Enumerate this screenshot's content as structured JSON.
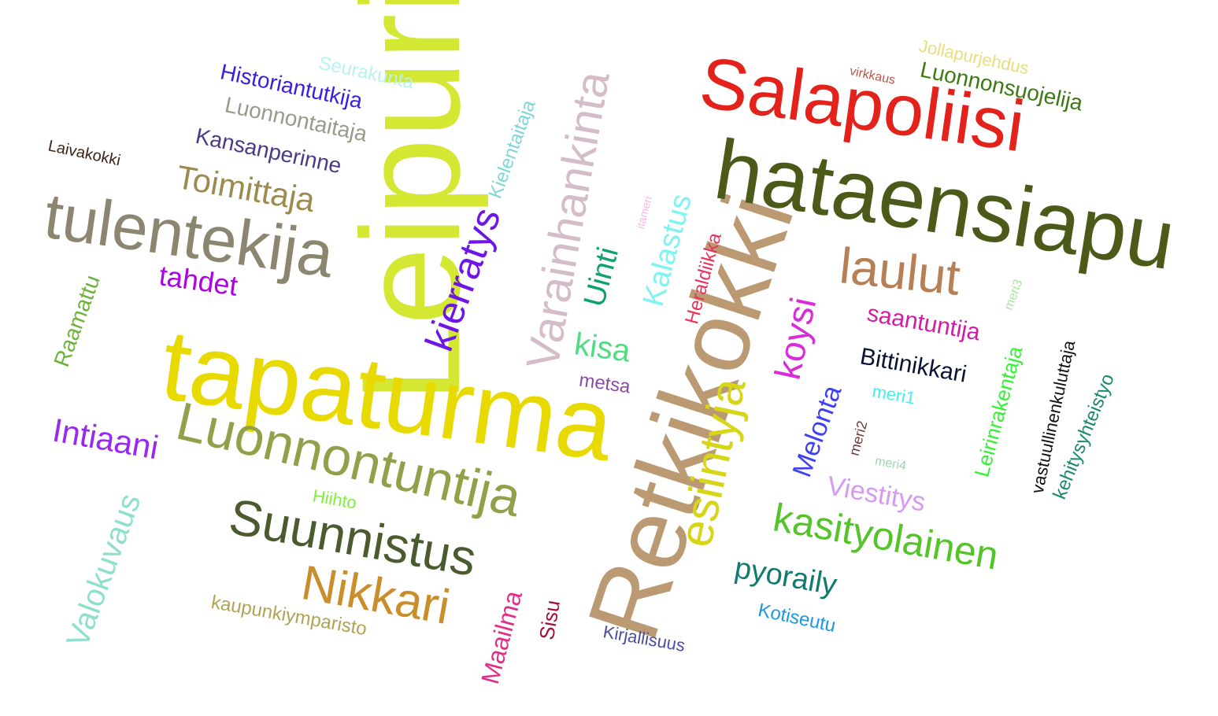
{
  "words": [
    {
      "text": "Leipuri",
      "color": "#d4e833"
    },
    {
      "text": "tapaturma",
      "color": "#e8d900"
    },
    {
      "text": "Retkikokki",
      "color": "#bb9a73"
    },
    {
      "text": "hataensiapu",
      "color": "#4b5a18"
    },
    {
      "text": "Salapoliisi",
      "color": "#e3231b"
    },
    {
      "text": "tulentekija",
      "color": "#8c8670"
    },
    {
      "text": "Luonnontuntija",
      "color": "#93a04a"
    },
    {
      "text": "Suunnistus",
      "color": "#4b5a2f"
    },
    {
      "text": "Varainhankinta",
      "color": "#d4bcc9"
    },
    {
      "text": "laulut",
      "color": "#b77f54"
    },
    {
      "text": "esiintyja",
      "color": "#d6d617"
    },
    {
      "text": "Nikkari",
      "color": "#c98d2a"
    },
    {
      "text": "kasityolainen",
      "color": "#55c42a"
    },
    {
      "text": "kierratys",
      "color": "#6e16e6"
    },
    {
      "text": "Toimittaja",
      "color": "#9b8b4e"
    },
    {
      "text": "Intiaani",
      "color": "#9b28f0"
    },
    {
      "text": "Valokuvaus",
      "color": "#8edfcc"
    },
    {
      "text": "koysi",
      "color": "#d92bd9"
    },
    {
      "text": "kisa",
      "color": "#4fdd84"
    },
    {
      "text": "pyoraily",
      "color": "#137a6e"
    },
    {
      "text": "Uinti",
      "color": "#0fa26a"
    },
    {
      "text": "Kalastus",
      "color": "#7ff2f2"
    },
    {
      "text": "Melonta",
      "color": "#3f3ff5"
    },
    {
      "text": "Viestitys",
      "color": "#d79af2"
    },
    {
      "text": "saantuntija",
      "color": "#d51aa4"
    },
    {
      "text": "Bittinikkari",
      "color": "#0b1335"
    },
    {
      "text": "Maailma",
      "color": "#df2f8a"
    },
    {
      "text": "Kansanperinne",
      "color": "#4d3a86"
    },
    {
      "text": "Historiantutkija",
      "color": "#3a1fe0"
    },
    {
      "text": "Luonnontaitaja",
      "color": "#959c8a"
    },
    {
      "text": "Luonnonsuojelija",
      "color": "#3b7a13"
    },
    {
      "text": "tahdet",
      "color": "#b000e6"
    },
    {
      "text": "Raamattu",
      "color": "#6fb23a"
    },
    {
      "text": "kaupunkiymparisto",
      "color": "#b0a454"
    },
    {
      "text": "Heraldiikka",
      "color": "#e8345c"
    },
    {
      "text": "Leirinrakentaja",
      "color": "#33f233"
    },
    {
      "text": "vastuullinenkuluttaja",
      "color": "#111111"
    },
    {
      "text": "kehitysyhteistyo",
      "color": "#1b8a6b"
    },
    {
      "text": "Kielentaitaja",
      "color": "#7fd6d6"
    },
    {
      "text": "Kotiseutu",
      "color": "#1a98e6"
    },
    {
      "text": "Sisu",
      "color": "#a0103a"
    },
    {
      "text": "Kirjallisuus",
      "color": "#4a4ea0"
    },
    {
      "text": "metsa",
      "color": "#8a4aa8"
    },
    {
      "text": "Seurakunta",
      "color": "#b6f3f0"
    },
    {
      "text": "Jollapurjehdus",
      "color": "#e8de7a"
    },
    {
      "text": "Hiihto",
      "color": "#7ef23a"
    },
    {
      "text": "Laivakokki",
      "color": "#3b2418"
    },
    {
      "text": "meri1",
      "color": "#3ff0f0"
    },
    {
      "text": "meri2",
      "color": "#6b3a3a"
    },
    {
      "text": "meri3",
      "color": "#a8e6a0"
    },
    {
      "text": "meri4",
      "color": "#9ad6b0"
    },
    {
      "text": "virkkaus",
      "color": "#b5574a"
    },
    {
      "text": "itameri",
      "color": "#f7b8e0"
    }
  ]
}
